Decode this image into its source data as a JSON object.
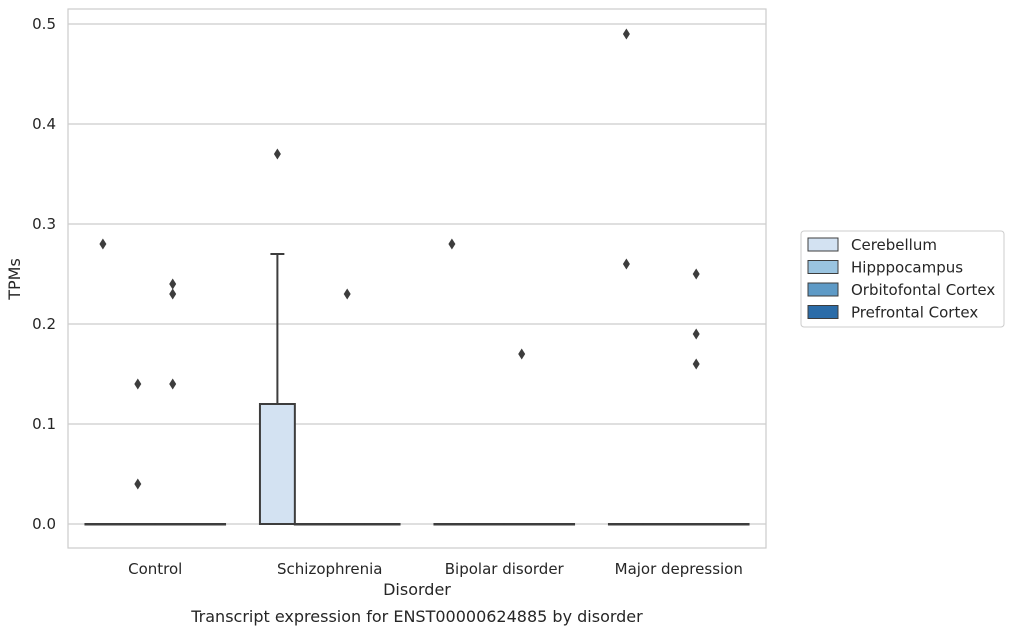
{
  "chart_data": {
    "type": "boxplot",
    "title": "Transcript expression for ENST00000624885 by disorder",
    "xlabel": "Disorder",
    "ylabel": "TPMs",
    "ylim": [
      -0.024,
      0.515
    ],
    "yticks": [
      0.0,
      0.1,
      0.2,
      0.3,
      0.4,
      0.5
    ],
    "ytick_labels": [
      "0.0",
      "0.1",
      "0.2",
      "0.3",
      "0.4",
      "0.5"
    ],
    "grid": "horizontal",
    "legend_position": "right",
    "categories": [
      "Control",
      "Schizophrenia",
      "Bipolar disorder",
      "Major depression"
    ],
    "series": [
      {
        "name": "Cerebellum",
        "color": "#d3e2f2",
        "boxes": [
          {
            "category": "Control",
            "q1": 0.0,
            "median": 0.0,
            "q3": 0.0,
            "whisker_low": 0.0,
            "whisker_high": 0.0,
            "outliers": [
              0.28
            ]
          },
          {
            "category": "Schizophrenia",
            "q1": 0.0,
            "median": 0.0,
            "q3": 0.12,
            "whisker_low": 0.0,
            "whisker_high": 0.27,
            "outliers": [
              0.37
            ]
          },
          {
            "category": "Bipolar disorder",
            "q1": 0.0,
            "median": 0.0,
            "q3": 0.0,
            "whisker_low": 0.0,
            "whisker_high": 0.0,
            "outliers": [
              0.28
            ]
          },
          {
            "category": "Major depression",
            "q1": 0.0,
            "median": 0.0,
            "q3": 0.0,
            "whisker_low": 0.0,
            "whisker_high": 0.0,
            "outliers": [
              0.49,
              0.26
            ]
          }
        ]
      },
      {
        "name": "Hipppocampus",
        "color": "#9ac4e0",
        "boxes": [
          {
            "category": "Control",
            "q1": 0.0,
            "median": 0.0,
            "q3": 0.0,
            "whisker_low": 0.0,
            "whisker_high": 0.0,
            "outliers": [
              0.14,
              0.04
            ]
          },
          {
            "category": "Schizophrenia",
            "q1": 0.0,
            "median": 0.0,
            "q3": 0.0,
            "whisker_low": 0.0,
            "whisker_high": 0.0,
            "outliers": []
          },
          {
            "category": "Bipolar disorder",
            "q1": 0.0,
            "median": 0.0,
            "q3": 0.0,
            "whisker_low": 0.0,
            "whisker_high": 0.0,
            "outliers": []
          },
          {
            "category": "Major depression",
            "q1": 0.0,
            "median": 0.0,
            "q3": 0.0,
            "whisker_low": 0.0,
            "whisker_high": 0.0,
            "outliers": []
          }
        ]
      },
      {
        "name": "Orbitofontal Cortex",
        "color": "#5e9ac6",
        "boxes": [
          {
            "category": "Control",
            "q1": 0.0,
            "median": 0.0,
            "q3": 0.0,
            "whisker_low": 0.0,
            "whisker_high": 0.0,
            "outliers": [
              0.24,
              0.23,
              0.14
            ]
          },
          {
            "category": "Schizophrenia",
            "q1": 0.0,
            "median": 0.0,
            "q3": 0.0,
            "whisker_low": 0.0,
            "whisker_high": 0.0,
            "outliers": [
              0.23
            ]
          },
          {
            "category": "Bipolar disorder",
            "q1": 0.0,
            "median": 0.0,
            "q3": 0.0,
            "whisker_low": 0.0,
            "whisker_high": 0.0,
            "outliers": [
              0.17
            ]
          },
          {
            "category": "Major depression",
            "q1": 0.0,
            "median": 0.0,
            "q3": 0.0,
            "whisker_low": 0.0,
            "whisker_high": 0.0,
            "outliers": [
              0.25,
              0.19,
              0.16
            ]
          }
        ]
      },
      {
        "name": "Prefrontal Cortex",
        "color": "#2b6ca8",
        "boxes": [
          {
            "category": "Control",
            "q1": 0.0,
            "median": 0.0,
            "q3": 0.0,
            "whisker_low": 0.0,
            "whisker_high": 0.0,
            "outliers": []
          },
          {
            "category": "Schizophrenia",
            "q1": 0.0,
            "median": 0.0,
            "q3": 0.0,
            "whisker_low": 0.0,
            "whisker_high": 0.0,
            "outliers": []
          },
          {
            "category": "Bipolar disorder",
            "q1": 0.0,
            "median": 0.0,
            "q3": 0.0,
            "whisker_low": 0.0,
            "whisker_high": 0.0,
            "outliers": []
          },
          {
            "category": "Major depression",
            "q1": 0.0,
            "median": 0.0,
            "q3": 0.0,
            "whisker_low": 0.0,
            "whisker_high": 0.0,
            "outliers": []
          }
        ]
      }
    ]
  }
}
